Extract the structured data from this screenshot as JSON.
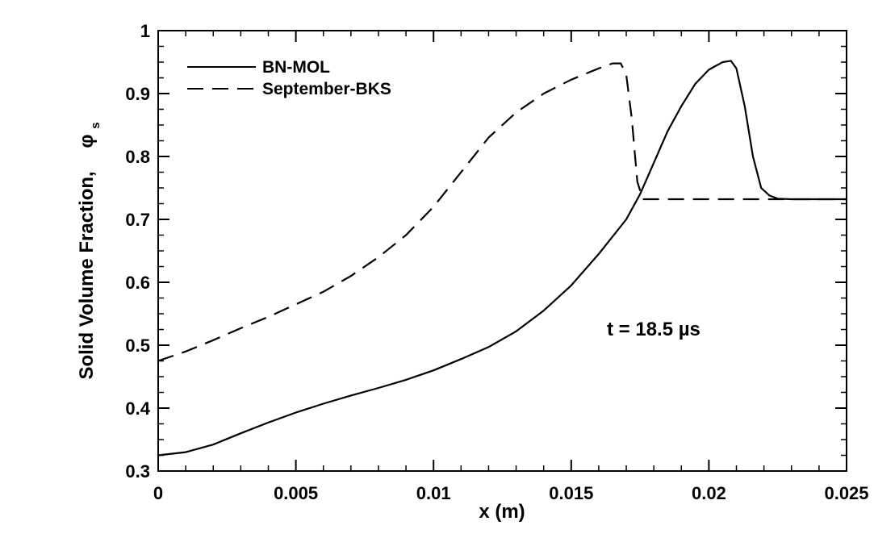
{
  "chart_data": {
    "type": "line",
    "xlabel": "x (m)",
    "ylabel": "Solid Volume Fraction,",
    "ylabel_symbol": "φ",
    "ylabel_subscript": "s",
    "xlim": [
      0,
      0.025
    ],
    "ylim": [
      0.3,
      1
    ],
    "x_ticks": [
      0,
      0.005,
      0.01,
      0.015,
      0.02,
      0.025
    ],
    "x_tick_labels": [
      "0",
      "0.005",
      "0.01",
      "0.015",
      "0.02",
      "0.025"
    ],
    "y_ticks": [
      0.3,
      0.4,
      0.5,
      0.6,
      0.7,
      0.8,
      0.9,
      1
    ],
    "y_tick_labels": [
      "0.3",
      "0.4",
      "0.5",
      "0.6",
      "0.7",
      "0.8",
      "0.9",
      "1"
    ],
    "grid": false,
    "legend_position": "top-left",
    "annotation": "t = 18.5  µs",
    "series": [
      {
        "name": "BN-MOL",
        "style": "solid",
        "color": "#000000",
        "x": [
          0,
          0.001,
          0.002,
          0.003,
          0.004,
          0.005,
          0.006,
          0.007,
          0.008,
          0.009,
          0.01,
          0.011,
          0.012,
          0.013,
          0.014,
          0.015,
          0.016,
          0.017,
          0.0175,
          0.018,
          0.0185,
          0.019,
          0.0195,
          0.02,
          0.0205,
          0.0208,
          0.021,
          0.0213,
          0.0216,
          0.0219,
          0.0222,
          0.0225,
          0.023,
          0.024,
          0.025
        ],
        "y": [
          0.325,
          0.33,
          0.342,
          0.36,
          0.377,
          0.393,
          0.407,
          0.42,
          0.432,
          0.445,
          0.46,
          0.478,
          0.497,
          0.522,
          0.555,
          0.595,
          0.645,
          0.7,
          0.74,
          0.79,
          0.84,
          0.88,
          0.915,
          0.938,
          0.95,
          0.952,
          0.94,
          0.88,
          0.8,
          0.75,
          0.738,
          0.733,
          0.732,
          0.732,
          0.732
        ]
      },
      {
        "name": "September-BKS",
        "style": "dashed",
        "color": "#000000",
        "x": [
          0,
          0.001,
          0.002,
          0.003,
          0.004,
          0.005,
          0.006,
          0.007,
          0.008,
          0.009,
          0.01,
          0.011,
          0.012,
          0.013,
          0.014,
          0.015,
          0.016,
          0.0165,
          0.0168,
          0.017,
          0.0172,
          0.0174,
          0.0176,
          0.018,
          0.019,
          0.02,
          0.021,
          0.022,
          0.023,
          0.024,
          0.025
        ],
        "y": [
          0.475,
          0.49,
          0.508,
          0.527,
          0.545,
          0.565,
          0.585,
          0.61,
          0.64,
          0.675,
          0.72,
          0.775,
          0.83,
          0.87,
          0.9,
          0.922,
          0.94,
          0.948,
          0.948,
          0.93,
          0.86,
          0.76,
          0.732,
          0.732,
          0.732,
          0.732,
          0.732,
          0.732,
          0.732,
          0.732,
          0.732
        ]
      }
    ]
  }
}
